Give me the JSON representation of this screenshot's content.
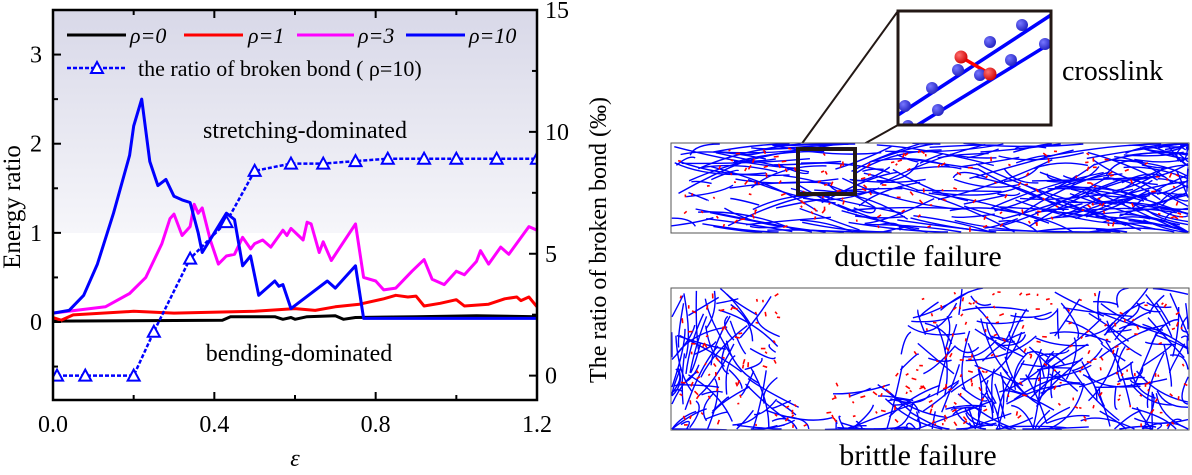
{
  "chart_data": {
    "type": "line",
    "xlabel": "ε",
    "ylabel": "Energy ratio",
    "y2label": "The ratio of broken bond (‰)",
    "xlim": [
      0,
      1.2
    ],
    "ylim": [
      -0.875,
      3.5
    ],
    "y2lim": [
      -1,
      15
    ],
    "xticks": [
      "0.0",
      "0.4",
      "0.8",
      "1.2"
    ],
    "yticks": [
      "0",
      "1",
      "2",
      "3"
    ],
    "y2ticks": [
      "0",
      "5",
      "10",
      "15"
    ],
    "grid": false,
    "legend_position": "top",
    "shaded_region": {
      "from": 1,
      "label": "stretching-dominated"
    },
    "lower_region_label": "bending-dominated",
    "series": [
      {
        "name": "ρ=0",
        "color": "#000000",
        "axis": "left",
        "style": "solid",
        "x": [
          0,
          0.42,
          0.44,
          0.55,
          0.57,
          0.59,
          0.6,
          0.63,
          0.7,
          0.72,
          0.75,
          0.9,
          1.05,
          1.2
        ],
        "y": [
          0.01,
          0.02,
          0.06,
          0.06,
          0.03,
          0.05,
          0.03,
          0.06,
          0.07,
          0.03,
          0.05,
          0.06,
          0.07,
          0.06
        ]
      },
      {
        "name": "ρ=1",
        "color": "#ff0000",
        "axis": "left",
        "style": "solid",
        "x": [
          0,
          0.02,
          0.05,
          0.2,
          0.3,
          0.5,
          0.6,
          0.65,
          0.7,
          0.76,
          0.82,
          0.85,
          0.88,
          0.9,
          0.92,
          0.96,
          1.0,
          1.02,
          1.08,
          1.12,
          1.15,
          1.16,
          1.18,
          1.2
        ],
        "y": [
          0.05,
          0.02,
          0.08,
          0.12,
          0.1,
          0.12,
          0.15,
          0.13,
          0.17,
          0.2,
          0.26,
          0.3,
          0.28,
          0.29,
          0.18,
          0.21,
          0.25,
          0.18,
          0.2,
          0.26,
          0.28,
          0.24,
          0.28,
          0.17
        ]
      },
      {
        "name": "ρ=3",
        "color": "#ff00ff",
        "axis": "left",
        "style": "solid",
        "x": [
          0,
          0.13,
          0.19,
          0.23,
          0.27,
          0.29,
          0.3,
          0.32,
          0.34,
          0.35,
          0.36,
          0.37,
          0.39,
          0.41,
          0.43,
          0.45,
          0.47,
          0.49,
          0.5,
          0.52,
          0.54,
          0.57,
          0.58,
          0.59,
          0.62,
          0.63,
          0.64,
          0.66,
          0.67,
          0.69,
          0.75,
          0.77,
          0.8,
          0.82,
          0.85,
          0.89,
          0.92,
          0.94,
          0.97,
          1.0,
          1.02,
          1.05,
          1.06,
          1.08,
          1.11,
          1.13,
          1.18,
          1.2
        ],
        "y": [
          0.1,
          0.17,
          0.32,
          0.5,
          0.88,
          1.16,
          1.21,
          0.97,
          1.07,
          1.32,
          1.22,
          1.28,
          0.92,
          0.65,
          0.74,
          0.76,
          0.95,
          0.82,
          0.88,
          0.92,
          0.84,
          1.03,
          0.97,
          1.05,
          0.92,
          1.12,
          1.1,
          0.78,
          0.9,
          0.69,
          1.1,
          0.5,
          0.46,
          0.36,
          0.38,
          0.57,
          0.7,
          0.48,
          0.42,
          0.57,
          0.53,
          0.68,
          0.8,
          0.65,
          0.84,
          0.76,
          1.07,
          1.03
        ]
      },
      {
        "name": "ρ=10",
        "color": "#0000ff",
        "axis": "left",
        "style": "solid",
        "x": [
          0,
          0.04,
          0.076,
          0.11,
          0.15,
          0.19,
          0.2,
          0.22,
          0.24,
          0.26,
          0.28,
          0.3,
          0.32,
          0.34,
          0.36,
          0.37,
          0.4,
          0.43,
          0.45,
          0.47,
          0.49,
          0.51,
          0.55,
          0.56,
          0.57,
          0.59,
          0.68,
          0.7,
          0.75,
          0.77,
          1.2
        ],
        "y": [
          0.1,
          0.13,
          0.3,
          0.65,
          1.22,
          1.87,
          2.2,
          2.5,
          1.8,
          1.53,
          1.6,
          1.41,
          1.37,
          1.34,
          1.0,
          0.78,
          1.0,
          1.22,
          1.15,
          0.63,
          0.74,
          0.3,
          0.46,
          0.4,
          0.42,
          0.15,
          0.46,
          0.38,
          0.63,
          0.04,
          0.04
        ]
      },
      {
        "name": "the ratio of broken bond ( ρ=10)",
        "color": "#0000ff",
        "axis": "right",
        "style": "dashed",
        "marker": "triangle",
        "x": [
          0.01,
          0.08,
          0.2,
          0.25,
          0.34,
          0.43,
          0.5,
          0.59,
          0.67,
          0.75,
          0.83,
          0.92,
          1.0,
          1.1,
          1.2
        ],
        "y": [
          0,
          0,
          0,
          1.8,
          4.8,
          6.3,
          8.4,
          8.7,
          8.7,
          8.8,
          8.9,
          8.9,
          8.9,
          8.9,
          8.9
        ]
      }
    ]
  },
  "legend": {
    "rho0": "ρ=0",
    "rho1": "ρ=1",
    "rho3": "ρ=3",
    "rho10": "ρ=10",
    "broken": "the ratio of broken bond ( ρ=10)"
  },
  "panels": {
    "crosslink_label": "crosslink",
    "ductile_label": "ductile failure",
    "brittle_label": "brittle failure",
    "fiber_color": "#0000ff",
    "crosslink_color": "#ff0000"
  }
}
